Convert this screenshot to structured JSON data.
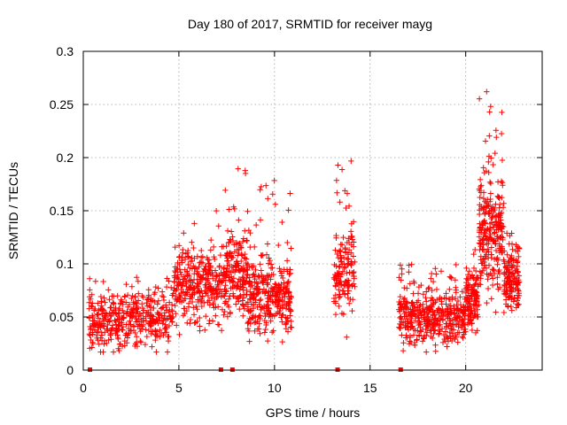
{
  "chart_data": {
    "type": "scatter",
    "title": "Day 180 of 2017, SRMTID for receiver mayg",
    "xlabel": "GPS time / hours",
    "ylabel": "SRMTID / TECUs",
    "xlim": [
      0,
      24
    ],
    "ylim": [
      0,
      0.3
    ],
    "xticks": [
      0,
      5,
      10,
      15,
      20
    ],
    "yticks": [
      0,
      0.05,
      0.1,
      0.15,
      0.2,
      0.25,
      0.3
    ],
    "xtick_labels": [
      "0",
      "5",
      "10",
      "15",
      "20"
    ],
    "ytick_labels": [
      "0",
      "0.05",
      "0.1",
      "0.15",
      "0.2",
      "0.25",
      "0.3"
    ],
    "grid": true,
    "marker": "+",
    "color": "#ff0000",
    "series": [
      {
        "name": "SRMTID",
        "segments": [
          {
            "x_start": 0.3,
            "x_end": 4.7,
            "y_base": 0.047,
            "y_spread": 0.022,
            "y_extra_max": 0.09,
            "count": 420
          },
          {
            "x_start": 4.7,
            "x_end": 7.4,
            "y_base": 0.08,
            "y_spread": 0.028,
            "y_extra_max": 0.16,
            "count": 320
          },
          {
            "x_start": 7.4,
            "x_end": 8.6,
            "y_base": 0.09,
            "y_spread": 0.032,
            "y_extra_max": 0.205,
            "count": 180
          },
          {
            "x_start": 8.6,
            "x_end": 10.9,
            "y_base": 0.07,
            "y_spread": 0.028,
            "y_extra_max": 0.18,
            "count": 320
          },
          {
            "x_start": 13.1,
            "x_end": 14.2,
            "y_base": 0.095,
            "y_spread": 0.035,
            "y_extra_max": 0.2,
            "count": 140
          },
          {
            "x_start": 16.5,
            "x_end": 20.0,
            "y_base": 0.048,
            "y_spread": 0.02,
            "y_extra_max": 0.1,
            "count": 420
          },
          {
            "x_start": 20.0,
            "x_end": 20.7,
            "y_base": 0.068,
            "y_spread": 0.025,
            "y_extra_max": 0.12,
            "count": 120
          },
          {
            "x_start": 20.7,
            "x_end": 22.0,
            "y_base": 0.13,
            "y_spread": 0.045,
            "y_extra_max": 0.263,
            "count": 260
          },
          {
            "x_start": 22.0,
            "x_end": 22.8,
            "y_base": 0.085,
            "y_spread": 0.025,
            "y_extra_max": 0.13,
            "count": 140
          }
        ],
        "zero_points_x": [
          0.35,
          7.2,
          7.8,
          13.3,
          16.6
        ]
      }
    ]
  }
}
